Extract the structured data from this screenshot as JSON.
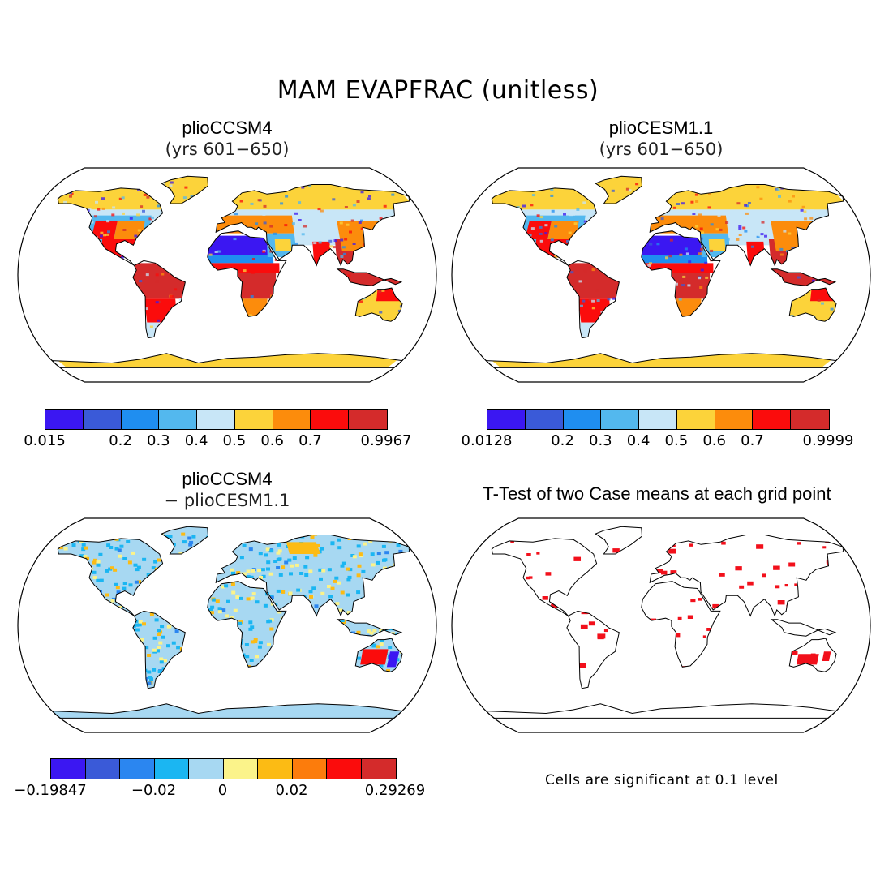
{
  "title": "MAM EVAPFRAC (unitless)",
  "panels": [
    {
      "id": "p1",
      "title": "plioCCSM4",
      "subtitle": "(yrs 601−650)",
      "colorbar": {
        "colors": [
          "#3b17f2",
          "#3a5ad8",
          "#1f8ef0",
          "#53b8ee",
          "#c8e6f7",
          "#fcd33a",
          "#fc8c0c",
          "#fb0c0c",
          "#d42b2b"
        ],
        "labels": [
          "0.015",
          "0.2",
          "0.3",
          "0.4",
          "0.5",
          "0.6",
          "0.7",
          "0.9967"
        ],
        "label_edges": [
          0,
          2,
          3,
          4,
          5,
          6,
          7,
          9
        ]
      }
    },
    {
      "id": "p2",
      "title": "plioCESM1.1",
      "subtitle": "(yrs 601−650)",
      "colorbar": {
        "colors": [
          "#3b17f2",
          "#3a5ad8",
          "#1f8ef0",
          "#53b8ee",
          "#c8e6f7",
          "#fcd33a",
          "#fc8c0c",
          "#fb0c0c",
          "#d42b2b"
        ],
        "labels": [
          "0.0128",
          "0.2",
          "0.3",
          "0.4",
          "0.5",
          "0.6",
          "0.7",
          "0.9999"
        ],
        "label_edges": [
          0,
          2,
          3,
          4,
          5,
          6,
          7,
          9
        ]
      }
    },
    {
      "id": "p3",
      "title": "plioCCSM4",
      "subtitle": "− plioCESM1.1",
      "colorbar": {
        "colors": [
          "#3b17f2",
          "#3a5ad8",
          "#2b86f0",
          "#1bb6f2",
          "#a7d8f2",
          "#fbf38a",
          "#fcbb14",
          "#fc7c0c",
          "#fb0c0c",
          "#d42b2b"
        ],
        "labels": [
          "−0.19847",
          "−0.02",
          "0",
          "0.02",
          "0.29269"
        ],
        "label_edges": [
          0,
          3,
          5,
          7,
          10
        ]
      }
    },
    {
      "id": "p4",
      "title": "T-Test of two Case means at each grid point",
      "subtitle": "",
      "note": "Cells are significant at 0.1 level"
    }
  ]
}
